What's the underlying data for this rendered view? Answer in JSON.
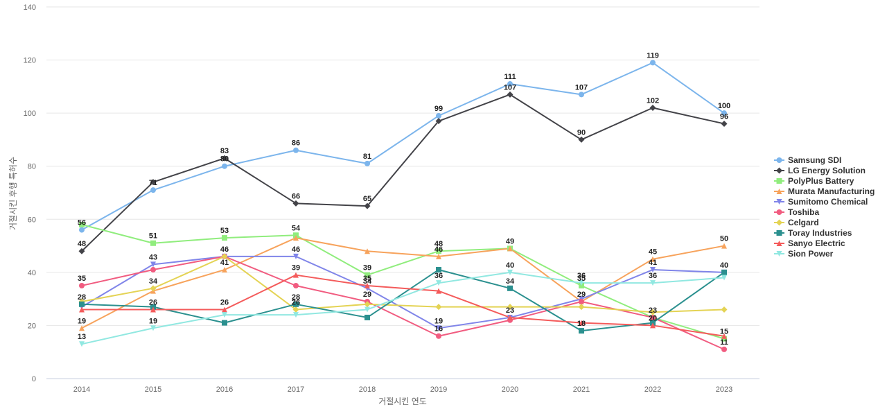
{
  "chart_data": {
    "type": "line",
    "title": "",
    "xlabel": "거절시킨 연도",
    "ylabel": "거절시킨 후행 특허수",
    "ylim": [
      0,
      140
    ],
    "yticks": [
      0,
      20,
      40,
      60,
      80,
      100,
      120,
      140
    ],
    "categories": [
      "2014",
      "2015",
      "2016",
      "2017",
      "2018",
      "2019",
      "2020",
      "2021",
      "2022",
      "2023"
    ],
    "grid": true,
    "legend_position": "right",
    "series": [
      {
        "name": "Samsung SDI",
        "color": "#7cb5ec",
        "marker": "circle",
        "values": [
          56,
          71,
          80,
          86,
          81,
          99,
          111,
          107,
          119,
          100
        ]
      },
      {
        "name": "LG Energy Solution",
        "color": "#434348",
        "marker": "diamond",
        "values": [
          48,
          74,
          83,
          66,
          65,
          97,
          107,
          90,
          102,
          96
        ]
      },
      {
        "name": "PolyPlus Battery",
        "color": "#90ed7d",
        "marker": "square",
        "values": [
          58,
          51,
          53,
          54,
          39,
          48,
          49,
          35,
          23,
          15
        ]
      },
      {
        "name": "Murata Manufacturing",
        "color": "#f7a35c",
        "marker": "triangle",
        "values": [
          19,
          33,
          41,
          53,
          48,
          46,
          49,
          29,
          45,
          50
        ]
      },
      {
        "name": "Sumitomo Chemical",
        "color": "#8085e9",
        "marker": "triangle-down",
        "values": [
          27,
          43,
          46,
          46,
          34,
          19,
          23,
          30,
          41,
          40
        ]
      },
      {
        "name": "Toshiba",
        "color": "#f15c80",
        "marker": "circle",
        "values": [
          35,
          41,
          46,
          35,
          29,
          16,
          22,
          29,
          23,
          11
        ]
      },
      {
        "name": "Celgard",
        "color": "#e4d354",
        "marker": "diamond",
        "values": [
          29,
          34,
          46,
          26,
          28,
          27,
          27,
          27,
          25,
          26
        ]
      },
      {
        "name": "Toray Industries",
        "color": "#2b908f",
        "marker": "square",
        "values": [
          28,
          27,
          21,
          28,
          23,
          41,
          34,
          18,
          21,
          40
        ]
      },
      {
        "name": "Sanyo Electric",
        "color": "#f45b5b",
        "marker": "triangle",
        "values": [
          26,
          26,
          26,
          39,
          35,
          33,
          23,
          21,
          20,
          16
        ]
      },
      {
        "name": "Sion Power",
        "color": "#91e8e1",
        "marker": "triangle-down",
        "values": [
          13,
          19,
          24,
          24,
          26,
          36,
          40,
          36,
          36,
          38
        ]
      }
    ],
    "data_labels": [
      {
        "series": 0,
        "points": [
          0,
          1,
          2,
          3,
          4,
          5,
          6,
          7,
          8,
          9
        ]
      },
      {
        "series": 1,
        "points": [
          0,
          2,
          3,
          4,
          6,
          7,
          8,
          9
        ]
      },
      {
        "series": 2,
        "points": [
          1,
          2,
          3,
          4,
          5,
          6,
          7,
          8,
          9
        ]
      },
      {
        "series": 3,
        "points": [
          0,
          2,
          5,
          8,
          9
        ]
      },
      {
        "series": 4,
        "points": [
          1,
          3,
          4,
          5,
          8,
          9
        ]
      },
      {
        "series": 5,
        "points": [
          0,
          2,
          4,
          5,
          7,
          9
        ]
      },
      {
        "series": 6,
        "points": [
          1,
          3
        ]
      },
      {
        "series": 7,
        "points": [
          0,
          3,
          6,
          7
        ]
      },
      {
        "series": 8,
        "points": [
          1,
          2,
          3,
          4,
          6,
          8
        ]
      },
      {
        "series": 9,
        "points": [
          0,
          1,
          5,
          6,
          7,
          8
        ]
      }
    ]
  }
}
